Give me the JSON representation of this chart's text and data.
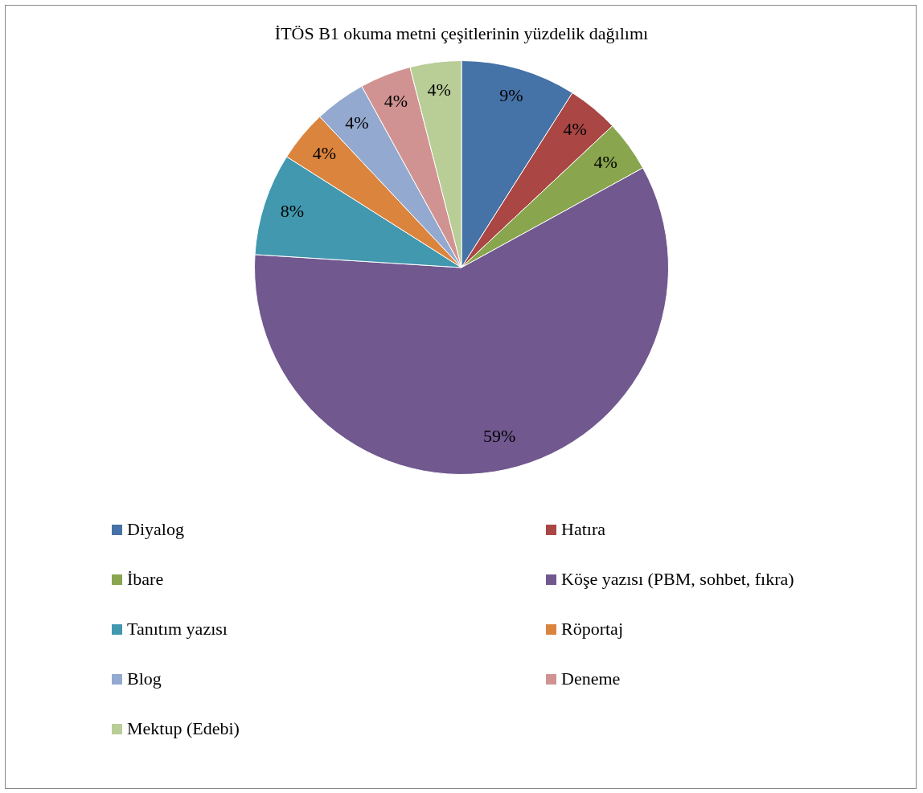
{
  "chart_data": {
    "type": "pie",
    "title": "İTÖS B1 okuma metni çeşitlerinin yüzdelik dağılımı",
    "categories": [
      "Diyalog",
      "Hatıra",
      "İbare",
      "Köşe yazısı (PBM, sohbet, fıkra)",
      "Tanıtım yazısı",
      "Röportaj",
      "Blog",
      "Deneme",
      "Mektup (Edebi)"
    ],
    "values": [
      9,
      4,
      4,
      59,
      8,
      4,
      4,
      4,
      4
    ],
    "value_labels": [
      "9%",
      "4%",
      "4%",
      "59%",
      "8%",
      "4%",
      "4%",
      "4%",
      "4%"
    ],
    "colors": [
      "#4572a7",
      "#aa4643",
      "#89a54e",
      "#71588f",
      "#4198af",
      "#db843d",
      "#93a9cf",
      "#d19392",
      "#b9cd96"
    ],
    "legend": "bottom"
  }
}
